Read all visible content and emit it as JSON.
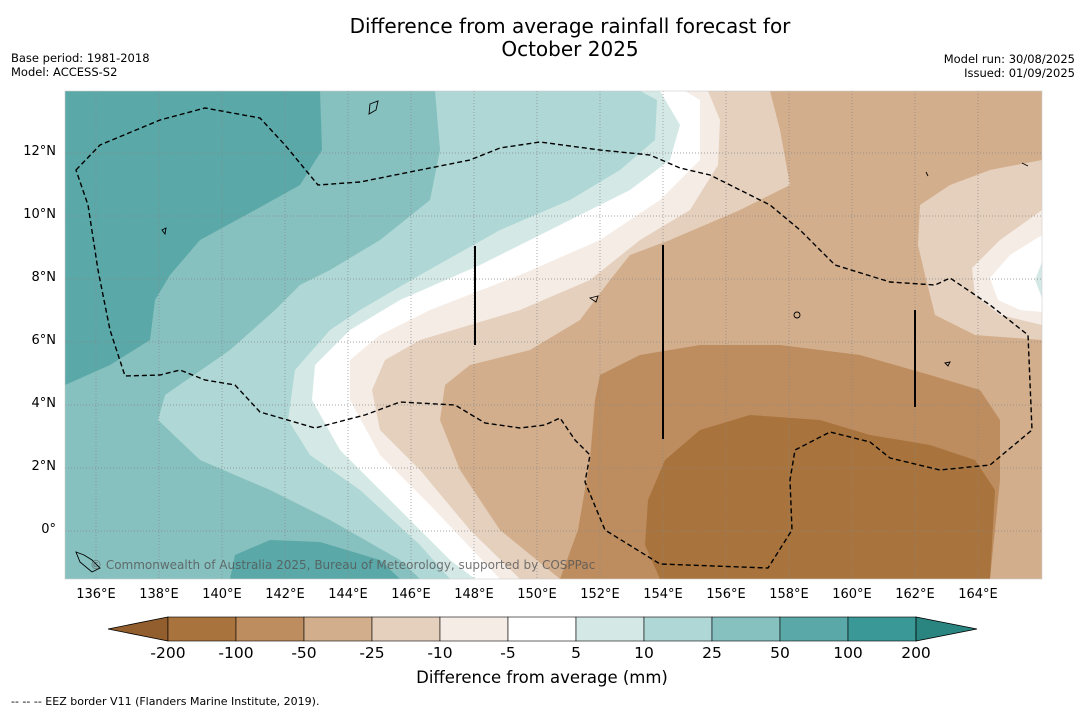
{
  "title_line1": "Difference from average rainfall forecast for",
  "title_line2": "October 2025",
  "base_period": "Base period: 1981-2018",
  "model": "Model: ACCESS-S2",
  "model_run": "Model run: 30/08/2025",
  "issued": "Issued: 01/09/2025",
  "copyright": "© Commonwealth of Australia 2025, Bureau of Meteorology, supported by COSPPac",
  "footer": "--  --  -- EEZ border V11 (Flanders Marine Institute, 2019).",
  "lat_labels": [
    "12°N",
    "10°N",
    "8°N",
    "6°N",
    "4°N",
    "2°N",
    "0°"
  ],
  "lon_labels": [
    "136°E",
    "138°E",
    "140°E",
    "142°E",
    "144°E",
    "146°E",
    "148°E",
    "150°E",
    "152°E",
    "154°E",
    "156°E",
    "158°E",
    "160°E",
    "162°E",
    "164°E"
  ],
  "colorbar": {
    "label": "Difference from average (mm)",
    "ticks": [
      "-200",
      "-100",
      "-50",
      "-25",
      "-10",
      "-5",
      "5",
      "10",
      "25",
      "50",
      "100",
      "200"
    ],
    "colors": [
      "#a8733c",
      "#be8d5f",
      "#d2ae8c",
      "#e5d0bd",
      "#f5ece6",
      "#ffffff",
      "#d4e9e6",
      "#aed7d5",
      "#86c0bf",
      "#5aa8a8",
      "#3a9896"
    ],
    "under_color": "#935e2e",
    "over_color": "#2a8480"
  },
  "map": {
    "lon_range": [
      135,
      166
    ],
    "lat_range": [
      -1.5,
      14
    ]
  }
}
